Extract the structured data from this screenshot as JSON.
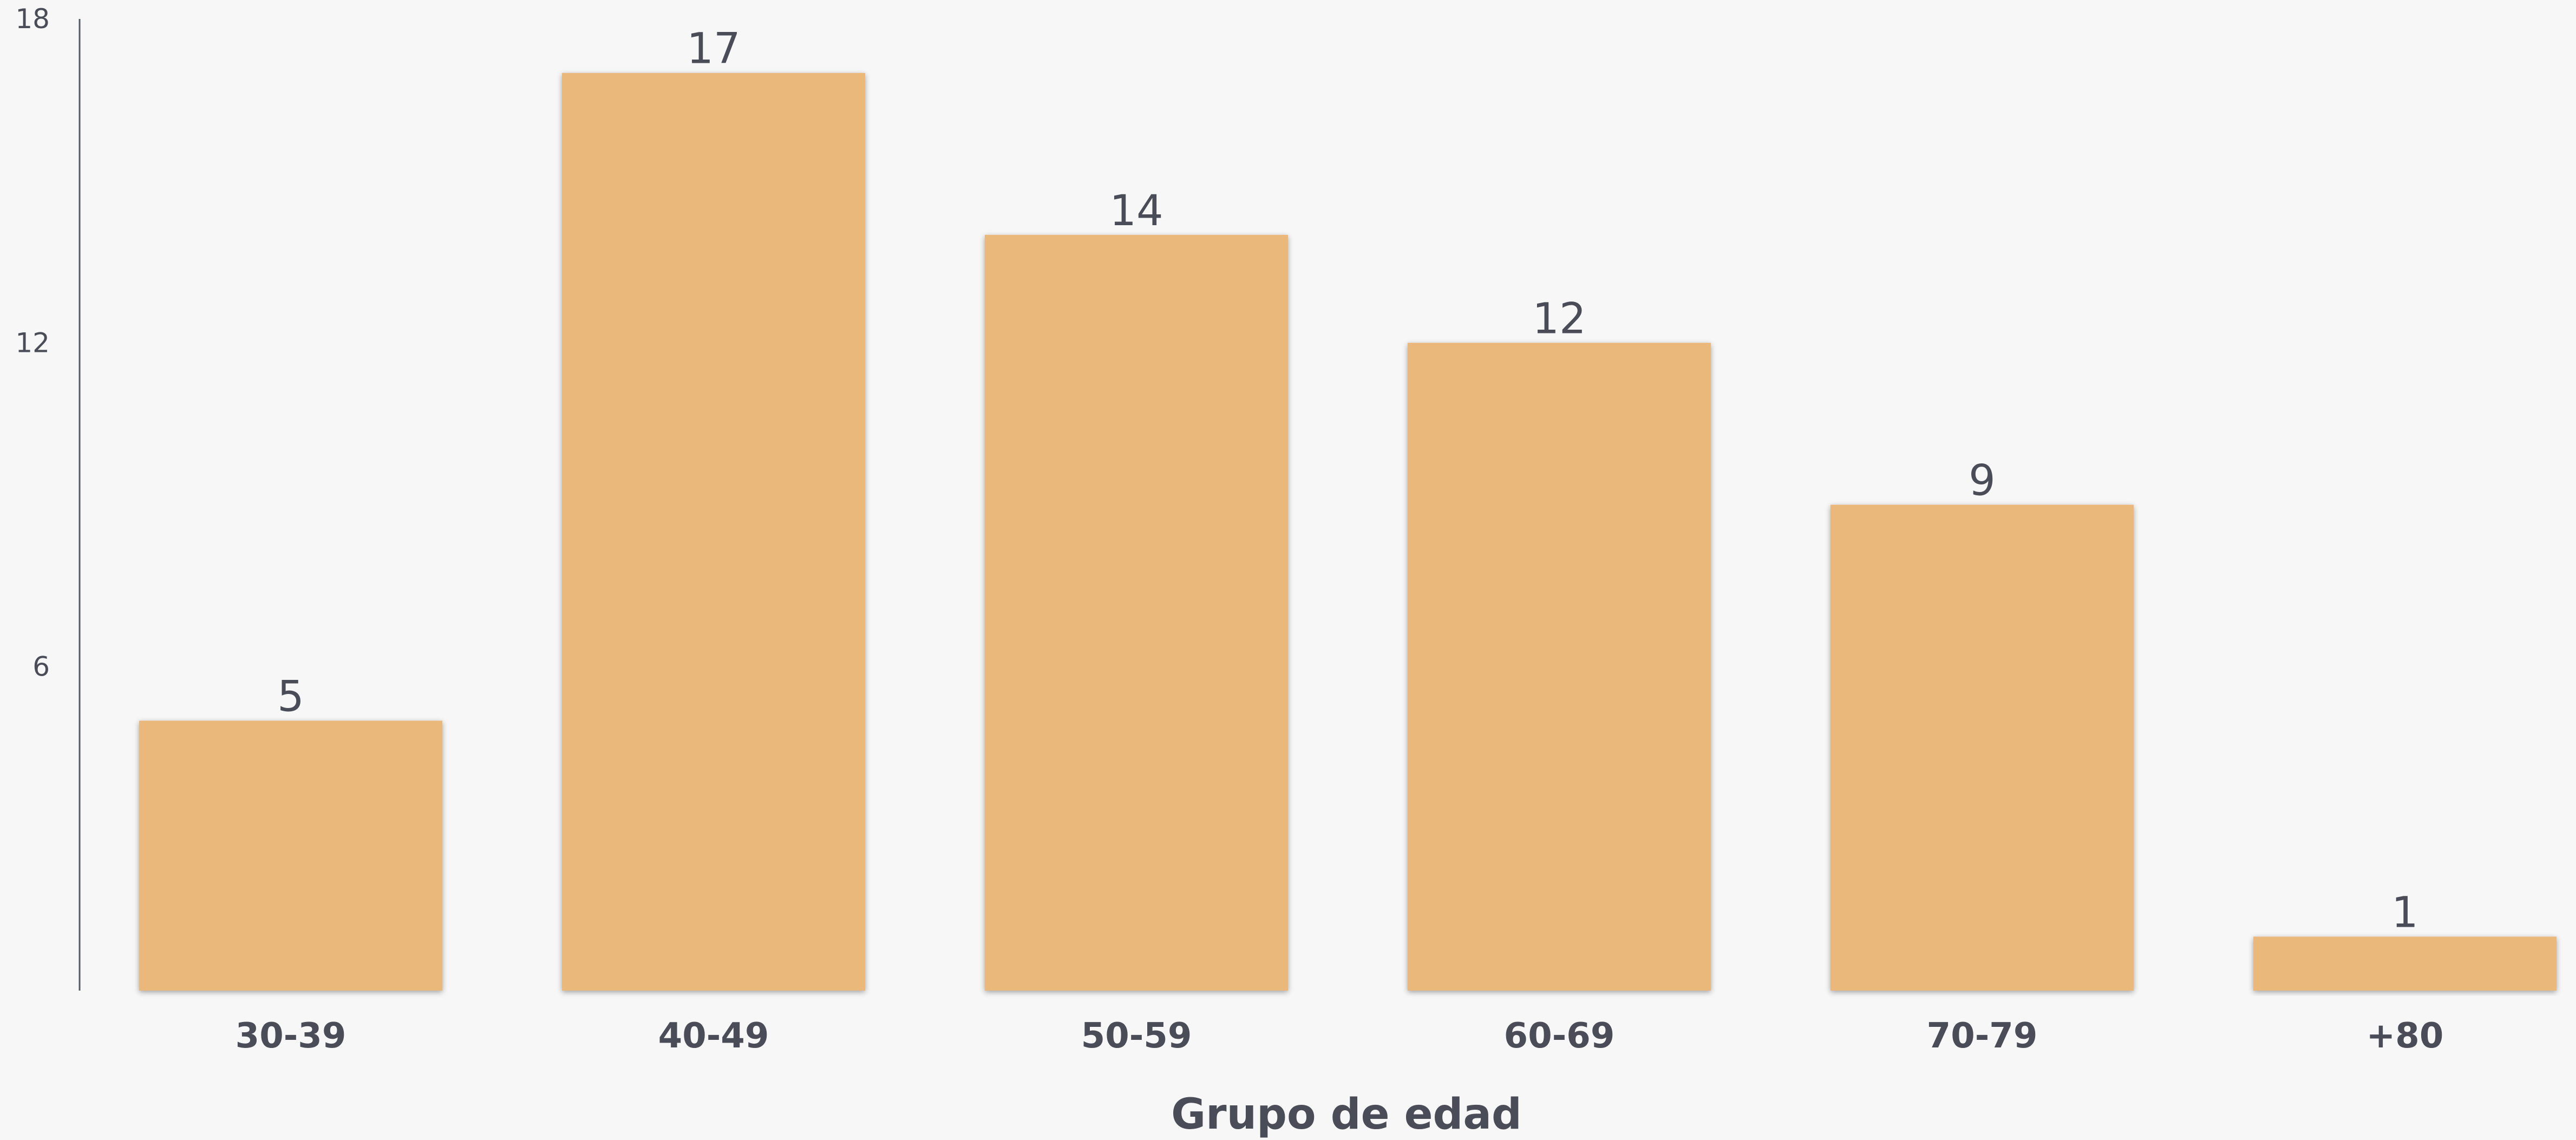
{
  "chart_data": {
    "type": "bar",
    "categories": [
      "30-39",
      "40-49",
      "50-59",
      "60-69",
      "70-79",
      "+80"
    ],
    "values": [
      5,
      17,
      14,
      12,
      9,
      1
    ],
    "xlabel": "Grupo de edad",
    "ylabel": "",
    "ylim": [
      0,
      18
    ],
    "yticks": [
      6,
      12,
      18
    ],
    "grid": false,
    "bar_color": "#ebb87c",
    "text_color": "#4a4d57",
    "background": "#f7f7f7"
  }
}
